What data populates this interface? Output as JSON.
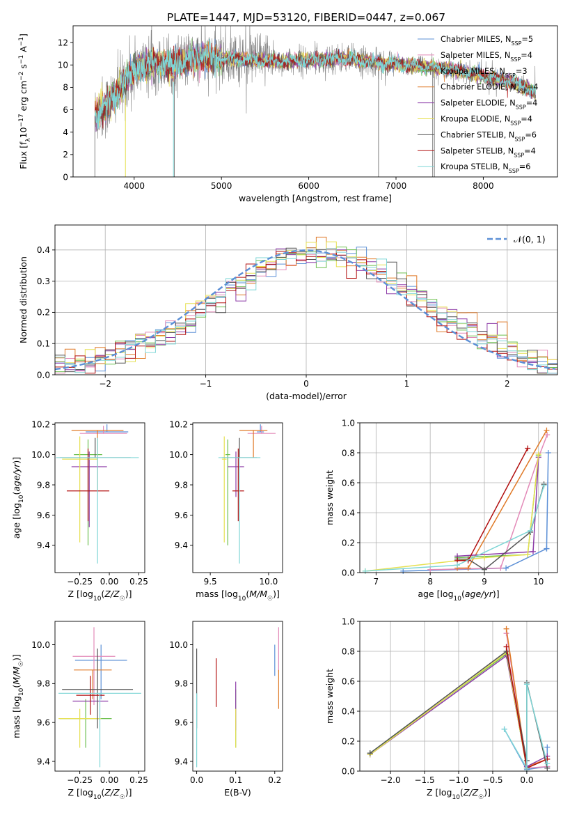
{
  "figure": {
    "title": "PLATE=1447, MJD=53120, FIBERID=0447, z=0.067"
  },
  "models": [
    {
      "name": "Chabrier MILES",
      "n": "5",
      "color": "#5b8fd6"
    },
    {
      "name": "Salpeter MILES",
      "n": "4",
      "color": "#e38ab8"
    },
    {
      "name": "Kroupa MILES",
      "n": "3",
      "color": "#6cbf4f"
    },
    {
      "name": "Chabrier ELODIE",
      "n": "4",
      "color": "#e07b2a"
    },
    {
      "name": "Salpeter ELODIE",
      "n": "4",
      "color": "#8d3ca8"
    },
    {
      "name": "Kroupa ELODIE",
      "n": "4",
      "color": "#e6e052"
    },
    {
      "name": "Chabrier STELIB",
      "n": "6",
      "color": "#555555"
    },
    {
      "name": "Salpeter STELIB",
      "n": "4",
      "color": "#b21010"
    },
    {
      "name": "Kroupa STELIB",
      "n": "6",
      "color": "#7fd6d6"
    }
  ],
  "legend_nssp_prefix": "N",
  "legend_nssp_sub": "SSP",
  "chart_data": [
    {
      "id": "spectrum",
      "type": "line",
      "xlabel": "wavelength [Angstrom, rest frame]",
      "ylabel": "Flux [f_λ10^-17 erg cm^-2 s^-1 A^-1]",
      "xlim": [
        3300,
        8850
      ],
      "ylim": [
        0,
        13.5
      ],
      "xticks": [
        4000,
        5000,
        6000,
        7000,
        8000
      ],
      "yticks": [
        0,
        2,
        4,
        6,
        8,
        10,
        12
      ],
      "legend": "top-right",
      "continuum": {
        "x": [
          3550,
          3700,
          3900,
          4000,
          4200,
          4400,
          4600,
          4800,
          5000,
          5300,
          5600,
          6000,
          6400,
          6800,
          7200,
          7600,
          8000,
          8400,
          8600
        ],
        "y": [
          5.5,
          6.5,
          8.5,
          9.5,
          10.2,
          10.0,
          10.4,
          10.6,
          10.6,
          10.5,
          10.3,
          10.4,
          10.6,
          10.2,
          9.9,
          9.7,
          9.0,
          8.3,
          7.5
        ]
      }
    },
    {
      "id": "residuals",
      "type": "bar",
      "xlabel": "(data-model)/error",
      "ylabel": "Normed distribution",
      "xlim": [
        -2.5,
        2.5
      ],
      "ylim": [
        0,
        0.48
      ],
      "xticks": [
        -2,
        -1,
        0,
        1,
        2
      ],
      "yticks": [
        0.0,
        0.1,
        0.2,
        0.3,
        0.4
      ],
      "legend_label": "𝒩(0, 1)",
      "legend": "top-right",
      "grid": true,
      "bin_width": 0.1
    },
    {
      "id": "age-vs-z",
      "type": "scatter",
      "xlabel": "Z [log10(Z/Z☉)]",
      "ylabel": "age [log10(age/yr)]",
      "xlim": [
        -0.46,
        0.3
      ],
      "ylim": [
        9.22,
        10.21
      ],
      "xticks": [
        -0.25,
        0.0,
        0.25
      ],
      "yticks": [
        9.4,
        9.6,
        9.8,
        10.0,
        10.2
      ],
      "points": [
        {
          "model": 0,
          "x": -0.02,
          "y": 10.15,
          "xerr": 0.18,
          "yerr": [
            0.0,
            0.05
          ]
        },
        {
          "model": 1,
          "x": -0.05,
          "y": 10.14,
          "xerr": 0.2,
          "yerr": [
            0.0,
            0.05
          ]
        },
        {
          "model": 2,
          "x": -0.18,
          "y": 10.0,
          "xerr": 0.12,
          "yerr": [
            0.6,
            0.1
          ]
        },
        {
          "model": 3,
          "x": -0.1,
          "y": 10.16,
          "xerr": 0.22,
          "yerr": [
            0.4,
            0.0
          ]
        },
        {
          "model": 4,
          "x": -0.17,
          "y": 9.92,
          "xerr": 0.15,
          "yerr": [
            0.4,
            0.1
          ]
        },
        {
          "model": 5,
          "x": -0.25,
          "y": 9.97,
          "xerr": 0.15,
          "yerr": [
            0.55,
            0.15
          ]
        },
        {
          "model": 6,
          "x": -0.12,
          "y": 9.98,
          "xerr": 0.3,
          "yerr": [
            0.0,
            0.13
          ]
        },
        {
          "model": 7,
          "x": -0.18,
          "y": 9.76,
          "xerr": 0.18,
          "yerr": [
            0.2,
            0.28
          ]
        },
        {
          "model": 8,
          "x": -0.1,
          "y": 9.98,
          "xerr": 0.35,
          "yerr": [
            0.7,
            0.13
          ]
        }
      ]
    },
    {
      "id": "age-vs-mass",
      "type": "scatter",
      "xlabel": "mass [log10(M/M☉)]",
      "ylabel": "",
      "xlim": [
        9.35,
        10.12
      ],
      "ylim": [
        9.22,
        10.21
      ],
      "xticks": [
        9.5,
        10.0
      ],
      "yticks": [
        9.4,
        9.6,
        9.8,
        10.0,
        10.2
      ],
      "points": [
        {
          "model": 0,
          "x": 9.93,
          "y": 10.15,
          "xerr": 0.03,
          "yerr": [
            0.0,
            0.05
          ]
        },
        {
          "model": 1,
          "x": 9.94,
          "y": 10.14,
          "xerr": 0.12,
          "yerr": [
            0.0,
            0.05
          ]
        },
        {
          "model": 2,
          "x": 9.65,
          "y": 10.0,
          "xerr": 0.02,
          "yerr": [
            0.6,
            0.1
          ]
        },
        {
          "model": 3,
          "x": 9.87,
          "y": 10.16,
          "xerr": 0.12,
          "yerr": [
            0.18,
            0.0
          ]
        },
        {
          "model": 4,
          "x": 9.72,
          "y": 9.92,
          "xerr": 0.07,
          "yerr": [
            0.2,
            0.1
          ]
        },
        {
          "model": 5,
          "x": 9.62,
          "y": 9.97,
          "xerr": 0.02,
          "yerr": [
            0.55,
            0.15
          ]
        },
        {
          "model": 6,
          "x": 9.75,
          "y": 9.98,
          "xerr": 0.15,
          "yerr": [
            0.0,
            0.13
          ]
        },
        {
          "model": 7,
          "x": 9.74,
          "y": 9.76,
          "xerr": 0.05,
          "yerr": [
            0.2,
            0.28
          ]
        },
        {
          "model": 8,
          "x": 9.75,
          "y": 9.98,
          "xerr": 0.18,
          "yerr": [
            0.7,
            0.0
          ]
        }
      ]
    },
    {
      "id": "weight-vs-age",
      "type": "line",
      "xlabel": "age [log10(age/yr)]",
      "ylabel": "mass weight",
      "xlim": [
        6.7,
        10.35
      ],
      "ylim": [
        0,
        1.0
      ],
      "xticks": [
        7,
        8,
        9,
        10
      ],
      "yticks": [
        0.0,
        0.2,
        0.4,
        0.6,
        0.8,
        1.0
      ],
      "grid": true,
      "series": [
        {
          "model": 0,
          "x": [
            7.5,
            9.4,
            10.15,
            10.18,
            10.15
          ],
          "y": [
            0.01,
            0.03,
            0.16,
            0.8,
            0.16
          ]
        },
        {
          "model": 1,
          "x": [
            8.0,
            9.3,
            10.0,
            10.16
          ],
          "y": [
            0.02,
            0.03,
            0.77,
            0.92
          ]
        },
        {
          "model": 2,
          "x": [
            8.5,
            9.8,
            10.0
          ],
          "y": [
            0.1,
            0.12,
            0.78
          ]
        },
        {
          "model": 3,
          "x": [
            8.5,
            8.7,
            10.15
          ],
          "y": [
            0.03,
            0.03,
            0.95
          ]
        },
        {
          "model": 4,
          "x": [
            8.5,
            9.9,
            10.0
          ],
          "y": [
            0.11,
            0.14,
            0.77
          ]
        },
        {
          "model": 5,
          "x": [
            6.8,
            9.0,
            9.8,
            10.0
          ],
          "y": [
            0.01,
            0.1,
            0.12,
            0.79
          ]
        },
        {
          "model": 6,
          "x": [
            8.5,
            8.7,
            9.0,
            9.85,
            10.1
          ],
          "y": [
            0.09,
            0.09,
            0.02,
            0.27,
            0.59
          ]
        },
        {
          "model": 7,
          "x": [
            8.5,
            8.7,
            9.8
          ],
          "y": [
            0.08,
            0.08,
            0.83
          ]
        },
        {
          "model": 8,
          "x": [
            6.8,
            8.5,
            9.85,
            10.1
          ],
          "y": [
            0.01,
            0.05,
            0.28,
            0.58
          ]
        }
      ]
    },
    {
      "id": "mass-vs-z",
      "type": "scatter",
      "xlabel": "Z [log10(Z/Z☉)]",
      "ylabel": "mass [log10(M/M☉)]",
      "xlim": [
        -0.46,
        0.3
      ],
      "ylim": [
        9.35,
        10.12
      ],
      "xticks": [
        -0.25,
        0.0,
        0.25
      ],
      "yticks": [
        9.4,
        9.6,
        9.8,
        10.0
      ],
      "points": [
        {
          "model": 0,
          "x": -0.07,
          "y": 9.92,
          "xerr": 0.22,
          "yerr": [
            0.2,
            0.08
          ]
        },
        {
          "model": 1,
          "x": -0.13,
          "y": 9.94,
          "xerr": 0.18,
          "yerr": [
            0.25,
            0.15
          ]
        },
        {
          "model": 2,
          "x": -0.2,
          "y": 9.62,
          "xerr": 0.22,
          "yerr": [
            0.15,
            0.1
          ]
        },
        {
          "model": 3,
          "x": -0.14,
          "y": 9.87,
          "xerr": 0.16,
          "yerr": [
            0.15,
            0.0
          ]
        },
        {
          "model": 4,
          "x": -0.16,
          "y": 9.71,
          "xerr": 0.15,
          "yerr": [
            0.0,
            0.05
          ]
        },
        {
          "model": 5,
          "x": -0.25,
          "y": 9.62,
          "xerr": 0.18,
          "yerr": [
            0.15,
            0.05
          ]
        },
        {
          "model": 6,
          "x": -0.1,
          "y": 9.77,
          "xerr": 0.3,
          "yerr": [
            0.2,
            0.21
          ]
        },
        {
          "model": 7,
          "x": -0.16,
          "y": 9.74,
          "xerr": 0.12,
          "yerr": [
            0.1,
            0.1
          ]
        },
        {
          "model": 8,
          "x": -0.08,
          "y": 9.75,
          "xerr": 0.35,
          "yerr": [
            0.38,
            0.0
          ]
        }
      ]
    },
    {
      "id": "mass-vs-ebv",
      "type": "scatter",
      "xlabel": "E(B-V)",
      "ylabel": "",
      "xlim": [
        -0.01,
        0.22
      ],
      "ylim": [
        9.35,
        10.12
      ],
      "xticks": [
        0.0,
        0.1,
        0.2
      ],
      "yticks": [
        9.4,
        9.6,
        9.8,
        10.0
      ],
      "points": [
        {
          "model": 0,
          "x": 0.2,
          "y": 9.92,
          "yerr": [
            0.08,
            0.08
          ]
        },
        {
          "model": 1,
          "x": 0.21,
          "y": 9.94,
          "yerr": [
            0.08,
            0.15
          ]
        },
        {
          "model": 2,
          "x": 0.1,
          "y": 9.62,
          "yerr": [
            0.15,
            0.15
          ]
        },
        {
          "model": 3,
          "x": 0.21,
          "y": 9.87,
          "yerr": [
            0.2,
            0.0
          ]
        },
        {
          "model": 4,
          "x": 0.1,
          "y": 9.71,
          "yerr": [
            0.15,
            0.1
          ]
        },
        {
          "model": 5,
          "x": 0.1,
          "y": 9.62,
          "yerr": [
            0.15,
            0.05
          ]
        },
        {
          "model": 6,
          "x": 0.0,
          "y": 9.77,
          "yerr": [
            0.2,
            0.21
          ]
        },
        {
          "model": 7,
          "x": 0.05,
          "y": 9.8,
          "yerr": [
            0.12,
            0.13
          ]
        },
        {
          "model": 8,
          "x": 0.0,
          "y": 9.75,
          "yerr": [
            0.38,
            0.0
          ]
        }
      ]
    },
    {
      "id": "weight-vs-z",
      "type": "line",
      "xlabel": "Z [log10(Z/Z☉)]",
      "ylabel": "mass weight",
      "xlim": [
        -2.45,
        0.45
      ],
      "ylim": [
        0,
        1.0
      ],
      "xticks": [
        -2.0,
        -1.5,
        -1.0,
        -0.5,
        0.0
      ],
      "yticks": [
        0.0,
        0.2,
        0.4,
        0.6,
        0.8,
        1.0
      ],
      "grid": true,
      "series": [
        {
          "model": 0,
          "x": [
            -0.33,
            0.0,
            0.3,
            0.3
          ],
          "y": [
            0.28,
            0.01,
            0.03,
            0.16
          ]
        },
        {
          "model": 1,
          "x": [
            -0.3,
            0.0,
            0.3
          ],
          "y": [
            0.92,
            0.02,
            0.03
          ]
        },
        {
          "model": 2,
          "x": [
            -2.3,
            -0.3,
            0.0
          ],
          "y": [
            0.12,
            0.78,
            0.02
          ]
        },
        {
          "model": 3,
          "x": [
            -0.3,
            0.0,
            0.3
          ],
          "y": [
            0.95,
            0.03,
            0.08
          ]
        },
        {
          "model": 4,
          "x": [
            -2.3,
            -0.3,
            0.0,
            0.3
          ],
          "y": [
            0.11,
            0.77,
            0.03,
            0.1
          ]
        },
        {
          "model": 5,
          "x": [
            -2.3,
            -0.3,
            0.0
          ],
          "y": [
            0.11,
            0.79,
            0.02
          ]
        },
        {
          "model": 6,
          "x": [
            -2.3,
            -0.3,
            0.0,
            0.0,
            0.3
          ],
          "y": [
            0.12,
            0.8,
            0.07,
            0.59,
            0.02
          ]
        },
        {
          "model": 7,
          "x": [
            -0.3,
            0.0,
            0.3
          ],
          "y": [
            0.83,
            0.02,
            0.08
          ]
        },
        {
          "model": 8,
          "x": [
            -0.33,
            0.0,
            0.0,
            0.3
          ],
          "y": [
            0.28,
            0.02,
            0.58,
            0.05
          ]
        }
      ]
    }
  ]
}
